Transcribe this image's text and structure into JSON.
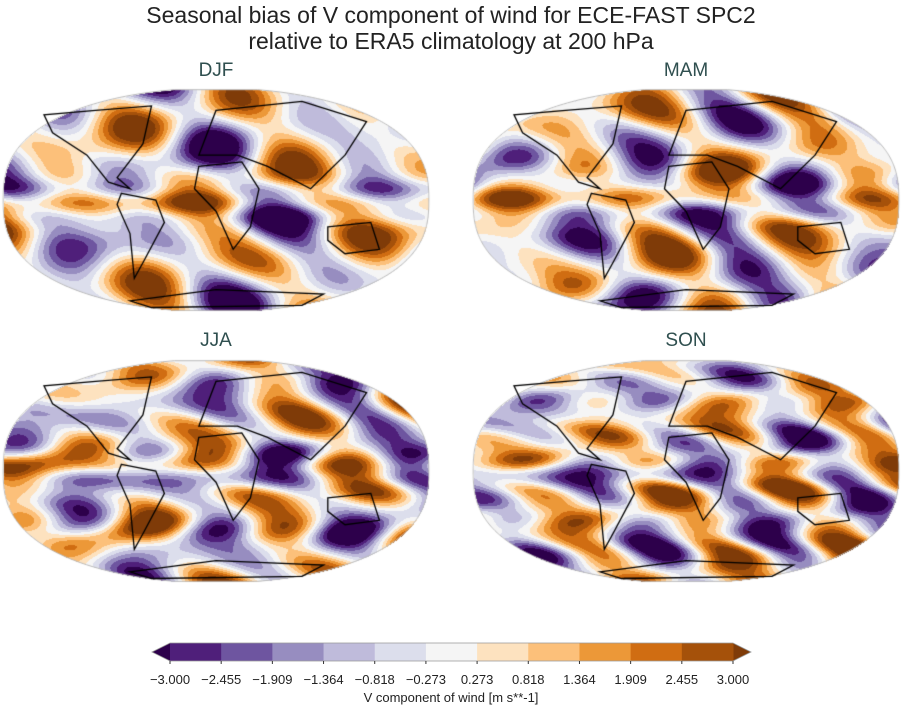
{
  "chart_data": {
    "type": "heatmap",
    "title_line1": "Seasonal bias of V component of wind for ECE-FAST SPC2",
    "title_line2": "relative to ERA5 climatology at 200 hPa",
    "panels": [
      {
        "label": "DJF",
        "seed": 1
      },
      {
        "label": "MAM",
        "seed": 2
      },
      {
        "label": "JJA",
        "seed": 3
      },
      {
        "label": "SON",
        "seed": 4
      }
    ],
    "projection": "Robinson",
    "colorbar": {
      "label": "V component of wind [m s**-1]",
      "ticks": [
        "−3.000",
        "−2.455",
        "−1.909",
        "−1.364",
        "−0.818",
        "−0.273",
        "0.273",
        "0.818",
        "1.364",
        "1.909",
        "2.455",
        "3.000"
      ],
      "levels": [
        -3.0,
        -2.455,
        -1.909,
        -1.364,
        -0.818,
        -0.273,
        0.273,
        0.818,
        1.364,
        1.909,
        2.455,
        3.0
      ],
      "colors": [
        "#4f1f7a",
        "#6e55a0",
        "#978dc0",
        "#bfbbdb",
        "#dcdeec",
        "#f5f5f5",
        "#fde2bf",
        "#fcc07a",
        "#ec9838",
        "#d06d12",
        "#a5510a"
      ],
      "extend_min_color": "#2d004b",
      "extend_max_color": "#7f3b08",
      "extend": "both",
      "orientation": "horizontal"
    }
  }
}
